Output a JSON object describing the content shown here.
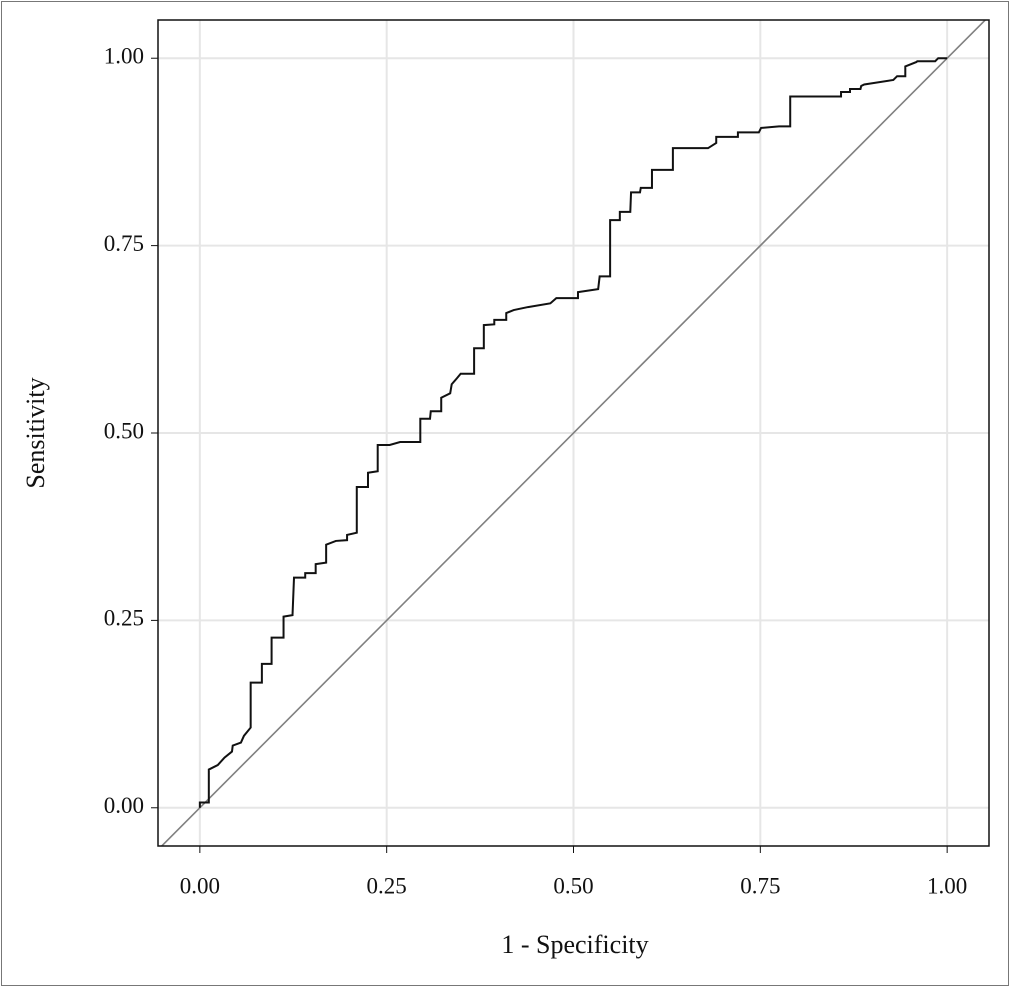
{
  "chart_data": {
    "type": "line",
    "xlabel": "1 - Specificity",
    "ylabel": "Sensitivity",
    "xlim": [
      -0.056,
      1.056
    ],
    "ylim": [
      -0.051,
      1.051
    ],
    "xticks": [
      {
        "value": 0,
        "label": "0.00"
      },
      {
        "value": 0.25,
        "label": "0.25"
      },
      {
        "value": 0.5,
        "label": "0.50"
      },
      {
        "value": 0.75,
        "label": "0.75"
      },
      {
        "value": 1,
        "label": "1.00"
      }
    ],
    "yticks": [
      {
        "value": 0,
        "label": "0.00"
      },
      {
        "value": 0.25,
        "label": "0.25"
      },
      {
        "value": 0.5,
        "label": "0.50"
      },
      {
        "value": 0.75,
        "label": "0.75"
      },
      {
        "value": 1,
        "label": "1.00"
      }
    ],
    "grid": true,
    "diagonal": true,
    "diagonal_color": "#808080",
    "series": [
      {
        "color": "#111111",
        "x": [
          0,
          0,
          0.012,
          0.012,
          0.024,
          0.033,
          0.043,
          0.044,
          0.055,
          0.059,
          0.068,
          0.068,
          0.083,
          0.083,
          0.096,
          0.096,
          0.112,
          0.112,
          0.124,
          0.126,
          0.141,
          0.141,
          0.155,
          0.155,
          0.169,
          0.169,
          0.182,
          0.197,
          0.197,
          0.21,
          0.21,
          0.225,
          0.225,
          0.238,
          0.238,
          0.254,
          0.268,
          0.295,
          0.295,
          0.308,
          0.309,
          0.323,
          0.323,
          0.335,
          0.337,
          0.344,
          0.349,
          0.367,
          0.367,
          0.38,
          0.38,
          0.394,
          0.394,
          0.41,
          0.41,
          0.42,
          0.439,
          0.469,
          0.477,
          0.506,
          0.506,
          0.533,
          0.535,
          0.549,
          0.549,
          0.562,
          0.562,
          0.576,
          0.577,
          0.589,
          0.59,
          0.605,
          0.605,
          0.633,
          0.633,
          0.68,
          0.691,
          0.691,
          0.72,
          0.72,
          0.748,
          0.751,
          0.775,
          0.79,
          0.79,
          0.858,
          0.858,
          0.87,
          0.87,
          0.884,
          0.885,
          0.889,
          0.928,
          0.933,
          0.944,
          0.944,
          0.959,
          0.96,
          0.984,
          0.988,
          1.0
        ],
        "values": [
          0,
          0.007,
          0.007,
          0.051,
          0.057,
          0.067,
          0.075,
          0.083,
          0.087,
          0.096,
          0.107,
          0.167,
          0.167,
          0.192,
          0.192,
          0.227,
          0.227,
          0.255,
          0.257,
          0.307,
          0.307,
          0.313,
          0.313,
          0.325,
          0.327,
          0.351,
          0.356,
          0.357,
          0.364,
          0.367,
          0.428,
          0.428,
          0.447,
          0.449,
          0.484,
          0.484,
          0.488,
          0.488,
          0.519,
          0.519,
          0.529,
          0.529,
          0.547,
          0.553,
          0.565,
          0.573,
          0.579,
          0.579,
          0.613,
          0.613,
          0.644,
          0.645,
          0.651,
          0.651,
          0.66,
          0.664,
          0.668,
          0.673,
          0.68,
          0.68,
          0.688,
          0.692,
          0.709,
          0.709,
          0.784,
          0.784,
          0.795,
          0.795,
          0.821,
          0.821,
          0.827,
          0.827,
          0.851,
          0.851,
          0.88,
          0.88,
          0.887,
          0.895,
          0.895,
          0.901,
          0.901,
          0.907,
          0.909,
          0.909,
          0.949,
          0.949,
          0.955,
          0.955,
          0.959,
          0.959,
          0.963,
          0.965,
          0.971,
          0.976,
          0.976,
          0.989,
          0.995,
          0.996,
          0.996,
          1.0,
          1.0
        ]
      }
    ]
  }
}
